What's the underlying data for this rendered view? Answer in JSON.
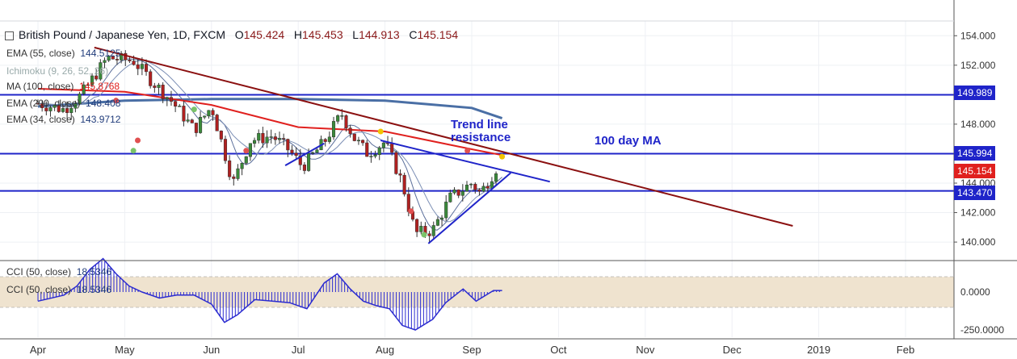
{
  "header": {
    "symbol_title": "British Pound / Japanese Yen, 1D, FXCM",
    "o_label": "O",
    "o_value": "145.424",
    "h_label": "H",
    "h_value": "145.453",
    "l_label": "L",
    "l_value": "144.913",
    "c_label": "C",
    "c_value": "145.154"
  },
  "indicator_legends": [
    {
      "label": "EMA (55, close)",
      "value": "144.5125"
    },
    {
      "label": "Ichimoku (9, 26, 52, 26)",
      "value": ""
    },
    {
      "label": "MA (100, close)",
      "value": "145.8768"
    },
    {
      "label": "EMA (200, close)",
      "value": "148.408"
    },
    {
      "label": "EMA (34, close)",
      "value": "143.9712"
    }
  ],
  "cci_legends": [
    {
      "label": "CCI (50, close)",
      "value": "18.5346"
    },
    {
      "label": "CCI (50, close)",
      "value": "18.5346"
    }
  ],
  "annotations": {
    "trendline_text_1": "Trend line",
    "trendline_text_2": "resistance",
    "ma_text": "100 day MA"
  },
  "price_tags": {
    "level_upper": "149.989",
    "level_mid": "145.994",
    "last_price": "145.154",
    "level_lower": "143.470"
  },
  "colors": {
    "level_line": "#1f24c9",
    "trendline": "#8b1010",
    "ma100": "#e0201e",
    "ema200": "#4a6fa5",
    "candle_up": "#3a8a3a",
    "candle_down": "#b02020",
    "cci_band": "#efe3cf",
    "cci_line": "#2b2bd0",
    "annotation": "#1f24c9"
  },
  "chart_data": [
    {
      "type": "line",
      "panel": "price",
      "y_ticks": [
        "154.000",
        "152.000",
        "150.000",
        "148.000",
        "146.000",
        "144.000",
        "142.000",
        "140.000"
      ],
      "ylim": [
        138.8,
        155.0
      ],
      "x_ticks": [
        "Apr",
        "May",
        "Jun",
        "Jul",
        "Aug",
        "Sep",
        "Oct",
        "Nov",
        "Dec",
        "2019",
        "Feb"
      ],
      "horizontal_levels": [
        149.989,
        145.994,
        143.47
      ],
      "close_approx": [
        {
          "m": 0.0,
          "c": 149.4
        },
        {
          "m": 0.3,
          "c": 149.0
        },
        {
          "m": 0.5,
          "c": 150.0
        },
        {
          "m": 0.8,
          "c": 152.5
        },
        {
          "m": 1.1,
          "c": 152.3
        },
        {
          "m": 1.3,
          "c": 151.0
        },
        {
          "m": 1.55,
          "c": 149.5
        },
        {
          "m": 1.8,
          "c": 147.6
        },
        {
          "m": 2.0,
          "c": 149.2
        },
        {
          "m": 2.25,
          "c": 144.0
        },
        {
          "m": 2.45,
          "c": 146.9
        },
        {
          "m": 2.7,
          "c": 147.2
        },
        {
          "m": 2.9,
          "c": 146.2
        },
        {
          "m": 3.05,
          "c": 145.1
        },
        {
          "m": 3.3,
          "c": 146.8
        },
        {
          "m": 3.5,
          "c": 148.7
        },
        {
          "m": 3.65,
          "c": 147.0
        },
        {
          "m": 3.8,
          "c": 146.0
        },
        {
          "m": 4.0,
          "c": 146.8
        },
        {
          "m": 4.2,
          "c": 144.0
        },
        {
          "m": 4.35,
          "c": 140.6
        },
        {
          "m": 4.55,
          "c": 140.8
        },
        {
          "m": 4.75,
          "c": 143.0
        },
        {
          "m": 5.0,
          "c": 144.0
        },
        {
          "m": 5.1,
          "c": 143.3
        },
        {
          "m": 5.3,
          "c": 145.2
        }
      ],
      "trendline_resistance": [
        [
          0.65,
          153.2
        ],
        [
          8.7,
          141.1
        ]
      ],
      "upper_channel": [
        [
          3.95,
          146.9
        ],
        [
          5.9,
          144.1
        ]
      ],
      "support_line": [
        [
          4.5,
          139.9
        ],
        [
          5.45,
          144.7
        ]
      ],
      "ma100_approx": [
        [
          0.0,
          150.4
        ],
        [
          1.0,
          150.2
        ],
        [
          2.0,
          149.3
        ],
        [
          3.0,
          147.8
        ],
        [
          4.0,
          147.5
        ],
        [
          5.0,
          146.3
        ],
        [
          5.35,
          145.9
        ]
      ],
      "ema200_approx": [
        [
          0.0,
          149.2
        ],
        [
          1.0,
          149.6
        ],
        [
          2.0,
          149.7
        ],
        [
          3.0,
          149.7
        ],
        [
          4.0,
          149.6
        ],
        [
          5.0,
          149.1
        ],
        [
          5.35,
          148.4
        ]
      ]
    },
    {
      "type": "line",
      "panel": "cci",
      "y_ticks": [
        "0.0000",
        "-250.0000"
      ],
      "band": [
        100,
        -100
      ],
      "cci_approx": [
        [
          0.0,
          -60
        ],
        [
          0.3,
          -20
        ],
        [
          0.45,
          40
        ],
        [
          0.6,
          150
        ],
        [
          0.75,
          220
        ],
        [
          0.9,
          120
        ],
        [
          1.05,
          40
        ],
        [
          1.2,
          0
        ],
        [
          1.4,
          -40
        ],
        [
          1.6,
          -20
        ],
        [
          1.8,
          -20
        ],
        [
          2.0,
          -80
        ],
        [
          2.15,
          -200
        ],
        [
          2.3,
          -150
        ],
        [
          2.5,
          -50
        ],
        [
          2.7,
          -60
        ],
        [
          2.9,
          -70
        ],
        [
          3.1,
          -110
        ],
        [
          3.3,
          60
        ],
        [
          3.45,
          120
        ],
        [
          3.6,
          20
        ],
        [
          3.75,
          -60
        ],
        [
          3.9,
          -90
        ],
        [
          4.05,
          -110
        ],
        [
          4.2,
          -220
        ],
        [
          4.35,
          -250
        ],
        [
          4.55,
          -180
        ],
        [
          4.7,
          -70
        ],
        [
          4.9,
          20
        ],
        [
          5.05,
          -60
        ],
        [
          5.25,
          10
        ],
        [
          5.35,
          10
        ]
      ]
    }
  ]
}
